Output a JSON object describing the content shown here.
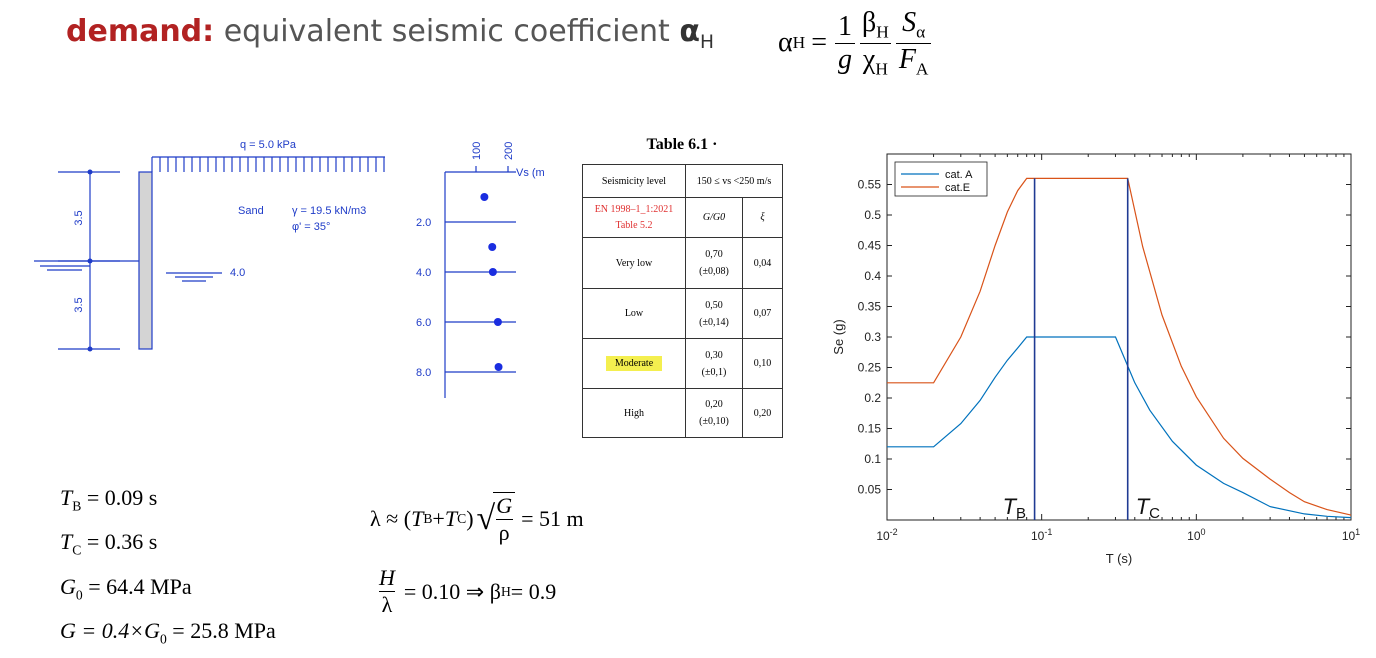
{
  "title": {
    "keyword": "demand:",
    "rest": "equivalent seismic coefficient",
    "symbol": "α",
    "symbol_sub": "H"
  },
  "formula": {
    "lhs": "α",
    "lhs_sub": "H",
    "eq": "=",
    "n1": "1",
    "d1": "g",
    "n2": "β",
    "n2_sub": "H",
    "d2": "χ",
    "d2_sub": "H",
    "n3": "S",
    "n3_sub": "α",
    "d3": "F",
    "d3_sub": "A"
  },
  "wall": {
    "load": "q = 5.0 kPa",
    "dim_top": "3.5",
    "dim_bottom": "3.5",
    "soil": "Sand",
    "gamma": "γ = 19.5 kN/m3",
    "phi": "φ' = 35°",
    "water_level": "4.0"
  },
  "vs_profile": {
    "axis_label": "Vs (m",
    "top_ticks": [
      "100",
      "200"
    ],
    "depths": [
      "2.0",
      "4.0",
      "6.0",
      "8.0"
    ],
    "points": [
      {
        "depth": 1,
        "vs": 125
      },
      {
        "depth": 3,
        "vs": 150
      },
      {
        "depth": 4,
        "vs": 152
      },
      {
        "depth": 6,
        "vs": 168
      },
      {
        "depth": 7.8,
        "vs": 170
      }
    ]
  },
  "table": {
    "title": "Table 6.1 ·",
    "h1": "Seismicity level",
    "h2": "150 ≤ vs <250 m/s",
    "ref1": "EN 1998–1_1:2021",
    "ref2": "Table 5.2",
    "col1": "G/G0",
    "col2": "ξ",
    "rows": [
      {
        "level": "Very low",
        "g": "0,70",
        "gtol": "(±0,08)",
        "xi": "0,04"
      },
      {
        "level": "Low",
        "g": "0,50",
        "gtol": "(±0,14)",
        "xi": "0,07"
      },
      {
        "level": "Moderate",
        "g": "0,30",
        "gtol": "(±0,1)",
        "xi": "0,10"
      },
      {
        "level": "High",
        "g": "0,20",
        "gtol": "(±0,10)",
        "xi": "0,20"
      }
    ]
  },
  "values": {
    "tb": {
      "sym": "T",
      "sub": "B",
      "rhs": " = 0.09 s"
    },
    "tc": {
      "sym": "T",
      "sub": "C",
      "rhs": " = 0.36 s"
    },
    "g0": {
      "sym": "G",
      "sub": "0",
      "rhs": " = 64.4 MPa"
    },
    "g": {
      "pre": "G = 0.4×",
      "sym": "G",
      "sub": "0",
      "rhs": " = 25.8 MPa"
    }
  },
  "lambda": {
    "lhs": "λ ≈ (",
    "tb": "T",
    "tb_sub": "B",
    "plus": " + ",
    "tc": "T",
    "tc_sub": "C",
    "close": ")",
    "num": "G",
    "den": "ρ",
    "rhs": "= 51 m"
  },
  "ratio": {
    "num": "H",
    "den": "λ",
    "rhs": "= 0.10 ⇒ β",
    "beta_sub": "H",
    "beta_val": " = 0.9"
  },
  "chart_data": {
    "type": "line",
    "xscale": "log",
    "xlim": [
      0.01,
      10
    ],
    "ylim": [
      0,
      0.6
    ],
    "xlabel": "T (s)",
    "ylabel": "Se (g)",
    "xticks": [
      {
        "v": 0.01,
        "b": "10",
        "e": "-2"
      },
      {
        "v": 0.1,
        "b": "10",
        "e": "-1"
      },
      {
        "v": 1,
        "b": "10",
        "e": "0"
      },
      {
        "v": 10,
        "b": "10",
        "e": "1"
      }
    ],
    "yticks": [
      "0.05",
      "0.1",
      "0.15",
      "0.2",
      "0.25",
      "0.3",
      "0.35",
      "0.4",
      "0.45",
      "0.5",
      "0.55"
    ],
    "legend": "top-left",
    "vlines": [
      {
        "label": "T",
        "sub": "B",
        "x": 0.09
      },
      {
        "label": "T",
        "sub": "C",
        "x": 0.36
      }
    ],
    "series": [
      {
        "name": "cat. A",
        "color": "#0072bd",
        "x": [
          0.01,
          0.02,
          0.03,
          0.04,
          0.05,
          0.06,
          0.07,
          0.08,
          0.3,
          0.4,
          0.5,
          0.7,
          1.0,
          1.5,
          2.0,
          3.0,
          5.0,
          7.0,
          10.0
        ],
        "y": [
          0.12,
          0.12,
          0.158,
          0.196,
          0.234,
          0.262,
          0.282,
          0.3,
          0.3,
          0.225,
          0.18,
          0.129,
          0.09,
          0.06,
          0.045,
          0.022,
          0.01,
          0.006,
          0.004
        ]
      },
      {
        "name": "cat.E",
        "color": "#d95319",
        "x": [
          0.01,
          0.02,
          0.03,
          0.04,
          0.05,
          0.06,
          0.07,
          0.08,
          0.36,
          0.45,
          0.6,
          0.8,
          1.0,
          1.5,
          2.0,
          3.0,
          4.0,
          5.0,
          7.0,
          10.0
        ],
        "y": [
          0.225,
          0.225,
          0.3,
          0.375,
          0.45,
          0.505,
          0.54,
          0.56,
          0.56,
          0.448,
          0.336,
          0.252,
          0.202,
          0.134,
          0.101,
          0.067,
          0.045,
          0.03,
          0.017,
          0.008
        ]
      }
    ]
  }
}
